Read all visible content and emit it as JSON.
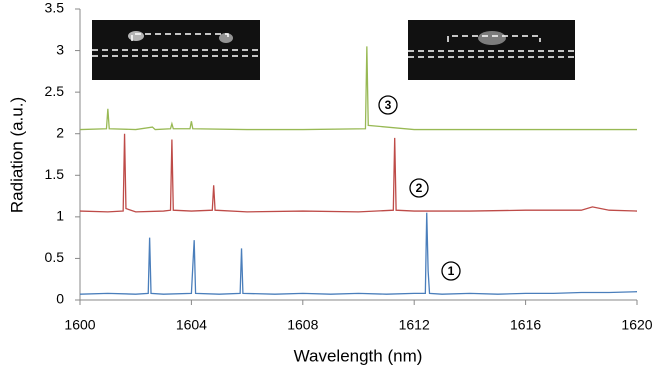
{
  "chart_data": {
    "type": "line",
    "x_label": "Wavelength (nm)",
    "y_label": "Radiation (a.u.)",
    "xlim": [
      1600,
      1620
    ],
    "xticks": [
      1600,
      1604,
      1608,
      1612,
      1616,
      1620
    ],
    "ylim": [
      0,
      3.5
    ],
    "yticks": [
      0,
      0.5,
      1,
      1.5,
      2,
      2.5,
      3,
      3.5
    ],
    "grid": false,
    "annotations": [
      "1",
      "2",
      "3"
    ],
    "series": [
      {
        "color": "#4a7ebb",
        "x": [
          1600,
          1601,
          1602,
          1602.45,
          1602.5,
          1602.55,
          1603,
          1604,
          1604.1,
          1604.15,
          1605,
          1605.75,
          1605.8,
          1605.85,
          1607,
          1608,
          1609,
          1610,
          1611,
          1612,
          1612.4,
          1612.45,
          1612.5,
          1612.55,
          1613,
          1614,
          1615,
          1616,
          1617,
          1618,
          1619,
          1620
        ],
        "values": [
          0.07,
          0.08,
          0.07,
          0.08,
          0.75,
          0.08,
          0.07,
          0.08,
          0.72,
          0.08,
          0.07,
          0.08,
          0.62,
          0.08,
          0.07,
          0.08,
          0.07,
          0.08,
          0.07,
          0.08,
          0.08,
          1.05,
          0.35,
          0.08,
          0.07,
          0.08,
          0.07,
          0.08,
          0.08,
          0.09,
          0.09,
          0.1
        ]
      },
      {
        "color": "#be4b48",
        "x": [
          1600,
          1601,
          1601.55,
          1601.6,
          1601.65,
          1602,
          1603,
          1603.25,
          1603.3,
          1603.35,
          1604,
          1604.75,
          1604.8,
          1604.85,
          1606,
          1608,
          1610,
          1611.25,
          1611.3,
          1611.35,
          1612,
          1614,
          1616,
          1618,
          1618.4,
          1619,
          1620
        ],
        "values": [
          1.07,
          1.06,
          1.07,
          2.0,
          1.1,
          1.06,
          1.07,
          1.08,
          1.93,
          1.08,
          1.07,
          1.08,
          1.38,
          1.08,
          1.06,
          1.07,
          1.06,
          1.08,
          1.95,
          1.08,
          1.07,
          1.07,
          1.08,
          1.08,
          1.12,
          1.08,
          1.07
        ]
      },
      {
        "color": "#98b954",
        "x": [
          1600,
          1600.95,
          1601,
          1601.05,
          1602,
          1602.6,
          1602.7,
          1603.25,
          1603.3,
          1603.35,
          1603.95,
          1604,
          1604.05,
          1606,
          1608,
          1610.25,
          1610.3,
          1610.35,
          1612,
          1614,
          1616,
          1618,
          1620
        ],
        "values": [
          2.05,
          2.06,
          2.3,
          2.06,
          2.05,
          2.08,
          2.05,
          2.06,
          2.12,
          2.06,
          2.06,
          2.15,
          2.06,
          2.05,
          2.05,
          2.06,
          3.05,
          2.1,
          2.05,
          2.05,
          2.05,
          2.05,
          2.05
        ]
      }
    ]
  }
}
